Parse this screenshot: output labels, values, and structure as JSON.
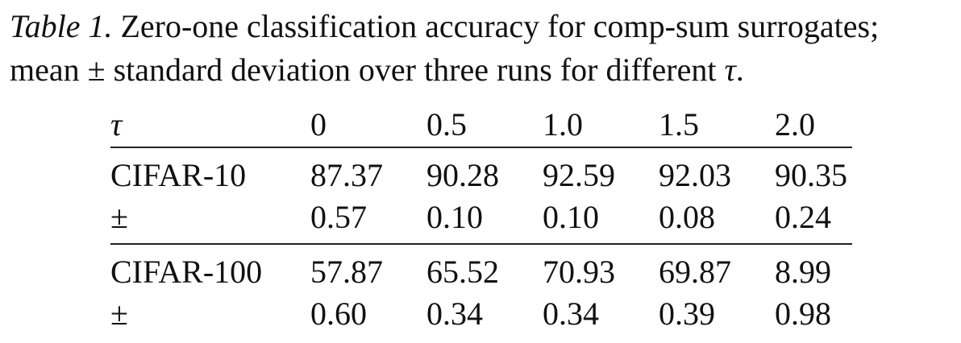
{
  "caption": {
    "label": "Table 1.",
    "text_line1": " Zero-one classification accuracy for comp-sum surrogates;",
    "text_line2_pre": "mean ± standard deviation over three runs for different ",
    "tau_symbol": "τ",
    "text_line2_post": "."
  },
  "table": {
    "header": {
      "param": "τ",
      "values": [
        "0",
        "0.5",
        "1.0",
        "1.5",
        "2.0"
      ]
    },
    "rows": [
      {
        "dataset": "CIFAR-10",
        "means": [
          "87.37",
          "90.28",
          "92.59",
          "92.03",
          "90.35"
        ],
        "pm_label": "±",
        "stds": [
          "0.57",
          "0.10",
          "0.10",
          "0.08",
          "0.24"
        ]
      },
      {
        "dataset": "CIFAR-100",
        "means": [
          "57.87",
          "65.52",
          "70.93",
          "69.87",
          "8.99"
        ],
        "pm_label": "±",
        "stds": [
          "0.60",
          "0.34",
          "0.34",
          "0.39",
          "0.98"
        ]
      }
    ]
  }
}
